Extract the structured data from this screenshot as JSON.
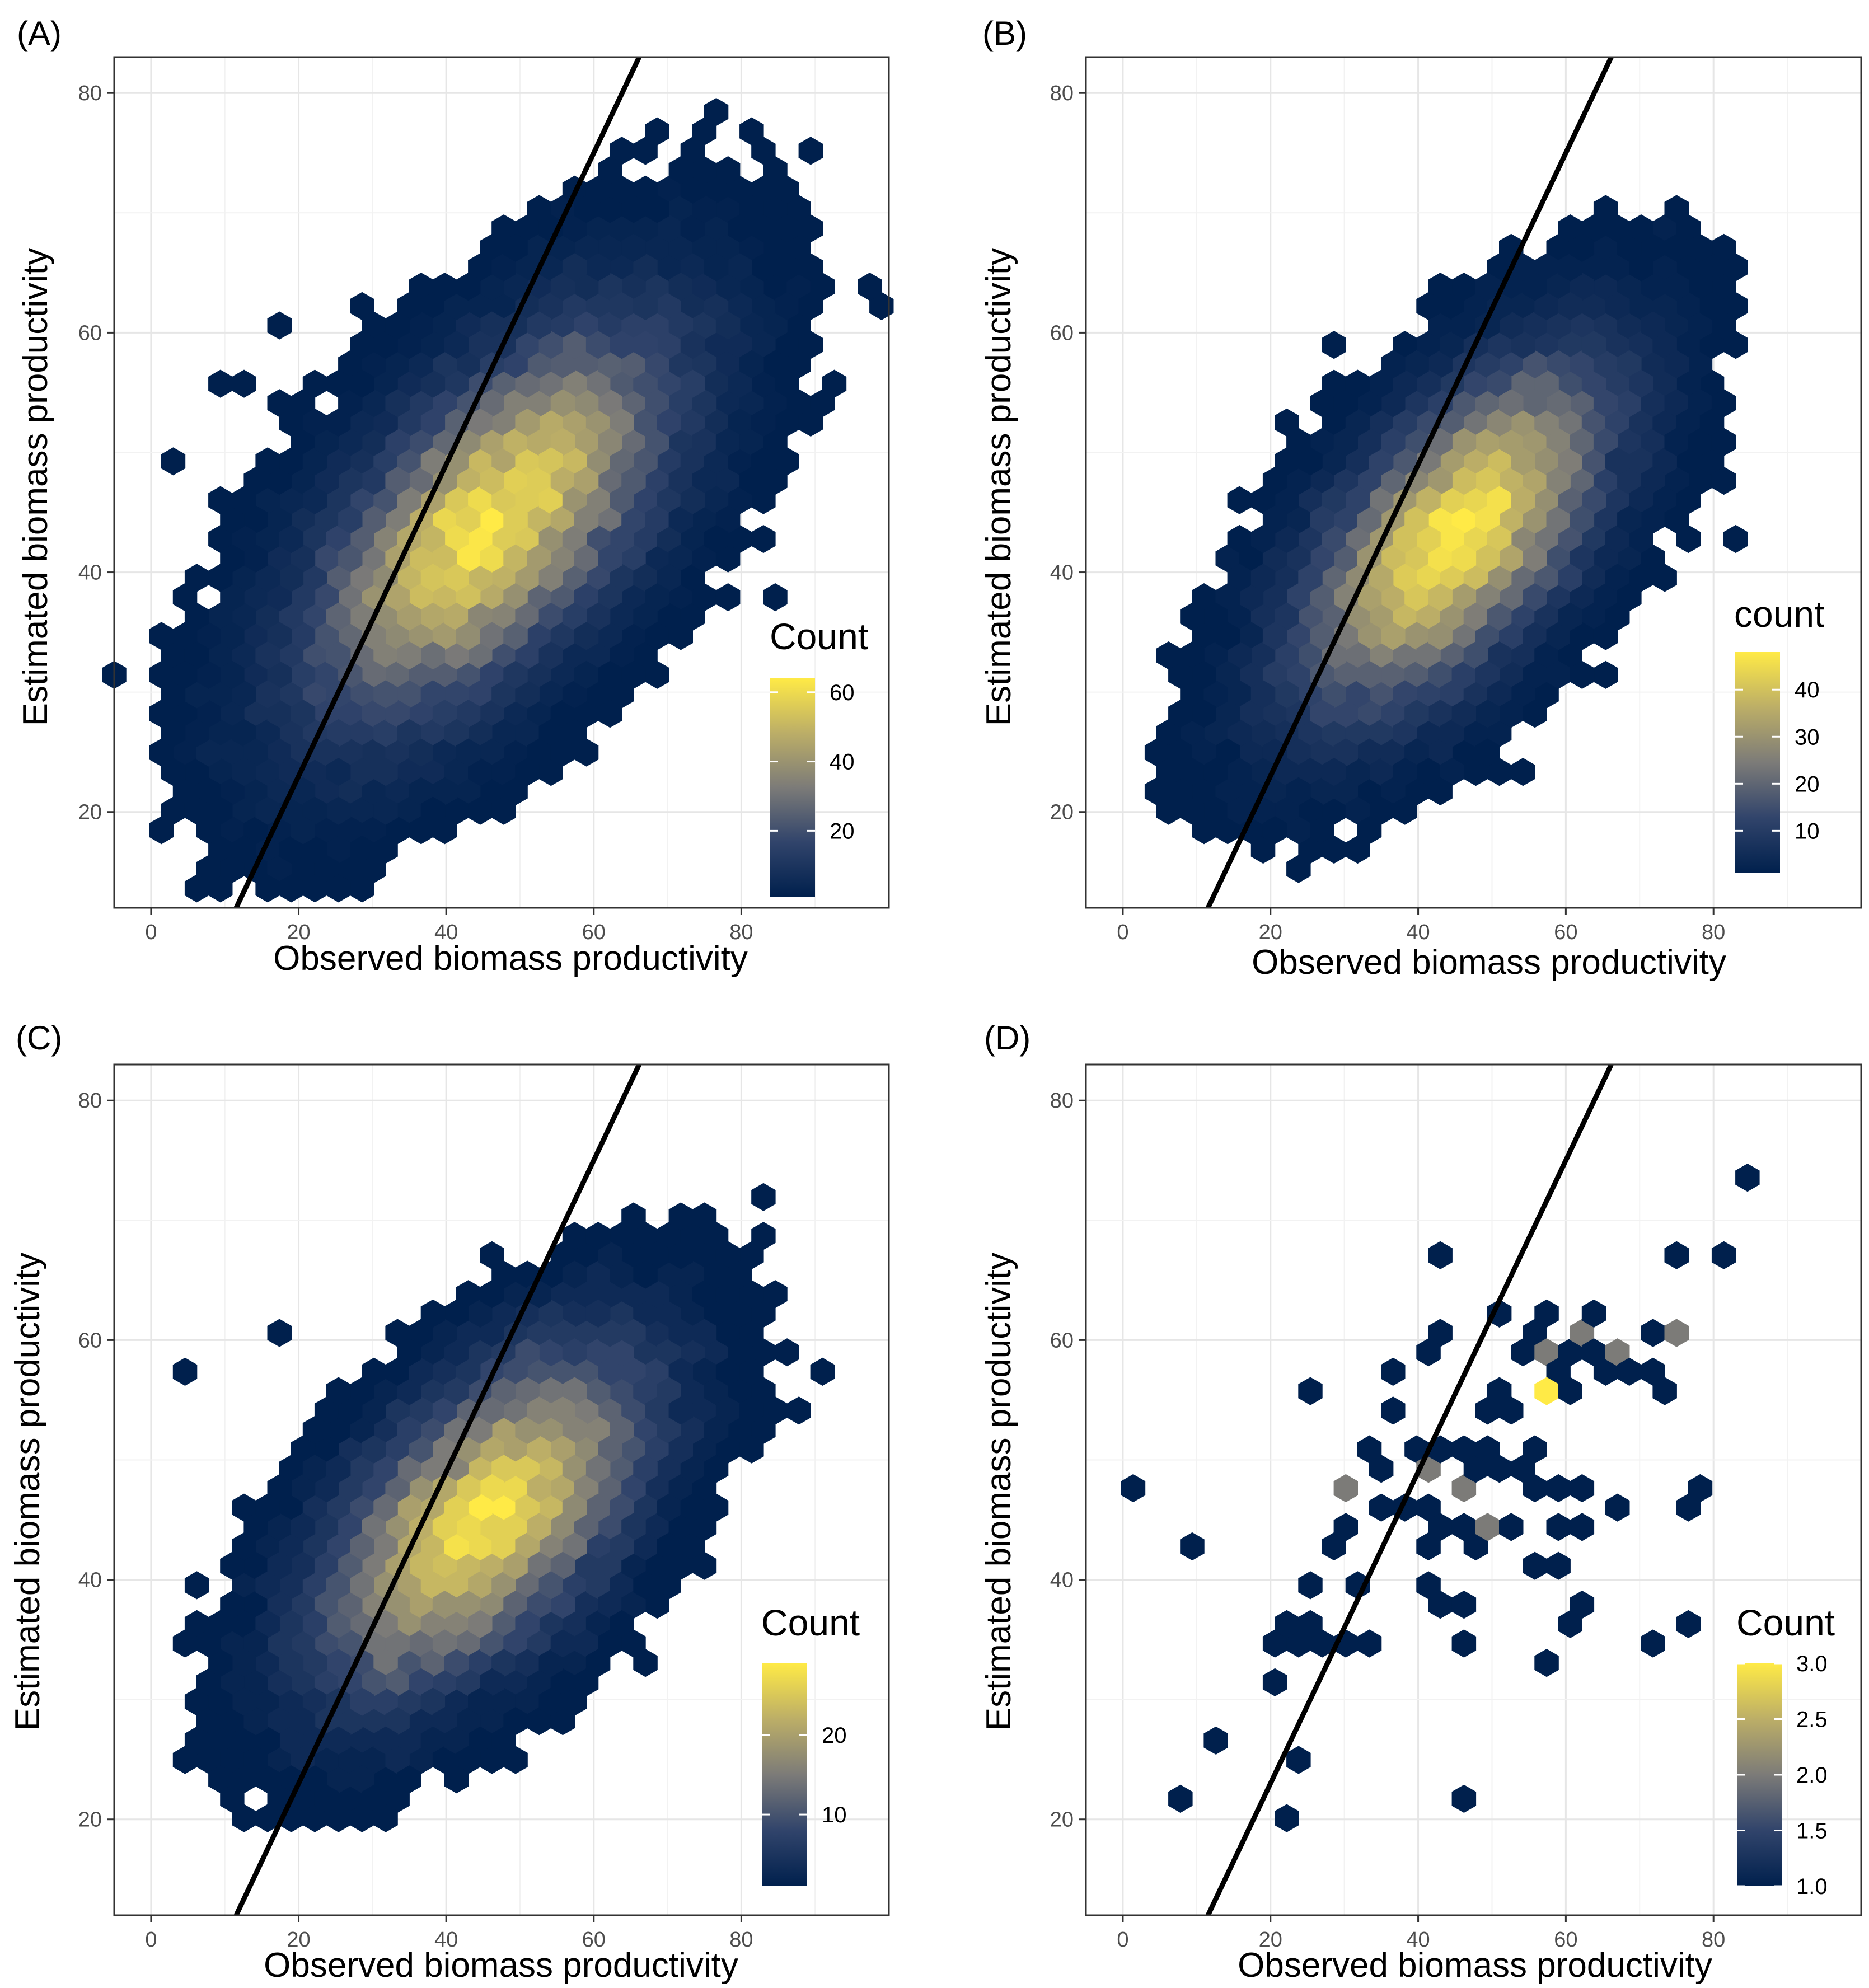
{
  "chart_data": [
    {
      "panel_label": "(A)",
      "type": "hexbin",
      "xlabel": "Observed biomass productivity",
      "ylabel": "Estimated biomass productivity",
      "xlim": [
        -5,
        100
      ],
      "ylim": [
        12,
        83
      ],
      "x_ticks": [
        0,
        20,
        40,
        60,
        80
      ],
      "y_ticks": [
        20,
        40,
        60,
        80
      ],
      "grid": true,
      "reference_line": {
        "slope": 1.3,
        "intercept": -3
      },
      "legend": {
        "title": "Count",
        "ticks": [
          20,
          40,
          60
        ],
        "min": 1,
        "max": 64,
        "placement": "right"
      },
      "center": [
        46,
        44
      ],
      "spread": [
        15,
        10
      ],
      "rho": 0.62,
      "peak": 64,
      "outliers": [
        [
          1.5,
          49.5
        ],
        [
          8,
          56.5
        ],
        [
          13,
          55
        ],
        [
          18,
          60.5
        ],
        [
          18,
          49.5
        ],
        [
          7,
          32.5
        ],
        [
          10,
          32.5
        ],
        [
          8,
          21
        ],
        [
          9,
          19.5
        ],
        [
          11,
          19.5
        ],
        [
          14,
          19.5
        ],
        [
          20,
          20
        ],
        [
          24,
          19.5
        ],
        [
          30,
          62.5
        ],
        [
          37,
          22
        ],
        [
          48,
          20.5
        ],
        [
          52,
          23
        ],
        [
          82,
          72
        ],
        [
          86,
          74
        ],
        [
          94,
          56.5
        ],
        [
          87,
          55
        ],
        [
          89,
          53
        ],
        [
          76,
          47.5
        ],
        [
          83,
          43.5
        ],
        [
          78,
          38
        ],
        [
          84,
          38
        ],
        [
          66,
          35.5
        ],
        [
          70,
          35.5
        ],
        [
          73,
          35.5
        ],
        [
          85,
          62.5
        ],
        [
          47,
          66
        ]
      ]
    },
    {
      "panel_label": "(B)",
      "type": "hexbin",
      "xlabel": "Observed biomass productivity",
      "ylabel": "Estimated biomass productivity",
      "xlim": [
        -5,
        100
      ],
      "ylim": [
        12,
        83
      ],
      "x_ticks": [
        0,
        20,
        40,
        60,
        80
      ],
      "y_ticks": [
        20,
        40,
        60,
        80
      ],
      "grid": true,
      "reference_line": {
        "slope": 1.3,
        "intercept": -3
      },
      "legend": {
        "title": "count",
        "ticks": [
          10,
          20,
          30,
          40
        ],
        "min": 1,
        "max": 48,
        "placement": "right"
      },
      "center": [
        45,
        43
      ],
      "spread": [
        13,
        9
      ],
      "rho": 0.62,
      "peak": 48,
      "outliers": [
        [
          6,
          32.5
        ],
        [
          10,
          32.5
        ],
        [
          6,
          21
        ],
        [
          7,
          19.5
        ],
        [
          9,
          19.5
        ],
        [
          12,
          19.5
        ],
        [
          24,
          19.5
        ],
        [
          28,
          58.5
        ],
        [
          22,
          53
        ],
        [
          81,
          60.5
        ],
        [
          82,
          43.5
        ],
        [
          76,
          43.5
        ],
        [
          78,
          47
        ],
        [
          50,
          23
        ],
        [
          53,
          23
        ],
        [
          65,
          34.5
        ],
        [
          66,
          66
        ]
      ]
    },
    {
      "panel_label": "(C)",
      "type": "hexbin",
      "xlabel": "Observed biomass productivity",
      "ylabel": "Estimated biomass productivity",
      "xlim": [
        -5,
        100
      ],
      "ylim": [
        12,
        83
      ],
      "x_ticks": [
        0,
        20,
        40,
        60,
        80
      ],
      "y_ticks": [
        20,
        40,
        60,
        80
      ],
      "grid": true,
      "reference_line": {
        "slope": 1.3,
        "intercept": -3
      },
      "legend": {
        "title": "Count",
        "ticks": [
          10,
          20
        ],
        "min": 1,
        "max": 29,
        "placement": "right"
      },
      "center": [
        45,
        45
      ],
      "spread": [
        14,
        9
      ],
      "rho": 0.58,
      "peak": 29,
      "outliers": [
        [
          6,
          57
        ],
        [
          16,
          61
        ],
        [
          92,
          57
        ],
        [
          89,
          53.5
        ],
        [
          83,
          72
        ],
        [
          71,
          70
        ],
        [
          12,
          32.5
        ],
        [
          19,
          19.5
        ],
        [
          49,
          25
        ],
        [
          68,
          32.5
        ],
        [
          58,
          33
        ],
        [
          52,
          33
        ],
        [
          15,
          23
        ],
        [
          17,
          25
        ]
      ]
    },
    {
      "panel_label": "(D)",
      "type": "hexbin",
      "xlabel": "Observed biomass productivity",
      "ylabel": "Estimated biomass productivity",
      "xlim": [
        -5,
        100
      ],
      "ylim": [
        12,
        83
      ],
      "x_ticks": [
        0,
        20,
        40,
        60,
        80
      ],
      "y_ticks": [
        20,
        40,
        60,
        80
      ],
      "grid": true,
      "reference_line": {
        "slope": 1.3,
        "intercept": -3
      },
      "legend": {
        "title": "Count",
        "ticks": [
          "1.0",
          "1.5",
          "2.0",
          "2.5",
          "3.0"
        ],
        "min": 1,
        "max": 3,
        "placement": "right"
      },
      "points": [
        [
          1.5,
          47.5,
          1
        ],
        [
          9,
          42,
          1
        ],
        [
          8,
          21.5,
          1
        ],
        [
          13,
          27,
          1
        ],
        [
          22,
          19.5,
          1
        ],
        [
          24,
          25,
          1
        ],
        [
          22,
          31,
          1
        ],
        [
          22,
          34.5,
          1
        ],
        [
          24,
          34.5,
          1
        ],
        [
          26,
          34.5,
          1
        ],
        [
          28,
          34.5,
          1
        ],
        [
          30,
          34.5,
          1
        ],
        [
          32,
          34.5,
          1
        ],
        [
          22,
          37,
          1
        ],
        [
          24,
          36,
          1
        ],
        [
          26,
          40,
          1
        ],
        [
          28,
          42,
          1
        ],
        [
          30,
          44,
          1
        ],
        [
          33,
          40,
          1
        ],
        [
          24,
          55,
          1
        ],
        [
          43,
          66.5,
          1
        ],
        [
          50,
          62.5,
          1
        ],
        [
          29,
          47.5,
          2
        ],
        [
          33,
          51.5,
          1
        ],
        [
          35,
          49.5,
          1
        ],
        [
          35,
          46,
          1
        ],
        [
          38,
          46,
          1
        ],
        [
          40,
          46,
          1
        ],
        [
          41,
          43.5,
          1
        ],
        [
          43,
          44,
          1
        ],
        [
          45,
          44.5,
          1
        ],
        [
          47,
          43.5,
          1
        ],
        [
          48,
          44,
          2
        ],
        [
          51,
          44,
          1
        ],
        [
          43,
          40,
          1
        ],
        [
          42,
          38.5,
          1
        ],
        [
          47,
          38,
          1
        ],
        [
          47,
          34.5,
          1
        ],
        [
          46,
          21.5,
          1
        ],
        [
          38,
          53.5,
          1
        ],
        [
          40,
          51.5,
          1
        ],
        [
          41,
          49.5,
          2
        ],
        [
          43,
          51.5,
          1
        ],
        [
          45,
          47.5,
          2
        ],
        [
          45,
          51.5,
          1
        ],
        [
          47,
          49.5,
          1
        ],
        [
          48,
          53.5,
          1
        ],
        [
          50,
          51.5,
          1
        ],
        [
          51,
          49.5,
          1
        ],
        [
          53,
          49.5,
          1
        ],
        [
          55,
          49.5,
          1
        ],
        [
          52,
          55.5,
          1
        ],
        [
          54,
          53.5,
          1
        ],
        [
          56,
          51.5,
          1
        ],
        [
          55,
          47.5,
          2
        ],
        [
          57,
          47.5,
          1
        ],
        [
          60,
          47.5,
          1
        ],
        [
          62,
          47.5,
          1
        ],
        [
          58,
          44,
          1
        ],
        [
          61,
          44,
          1
        ],
        [
          56,
          40.5,
          1
        ],
        [
          59,
          40.5,
          1
        ],
        [
          62,
          38.5,
          1
        ],
        [
          61,
          36.5,
          1
        ],
        [
          58,
          32.5,
          1
        ],
        [
          66,
          46,
          1
        ],
        [
          54,
          58.5,
          1
        ],
        [
          56,
          60.5,
          1
        ],
        [
          58,
          62.5,
          1
        ],
        [
          58,
          59,
          2
        ],
        [
          60,
          57.5,
          1
        ],
        [
          58,
          55.5,
          3
        ],
        [
          61,
          56.5,
          1
        ],
        [
          62,
          59,
          1
        ],
        [
          63,
          61,
          2
        ],
        [
          64,
          63,
          1
        ],
        [
          65,
          59,
          1
        ],
        [
          66,
          57,
          1
        ],
        [
          68,
          59,
          2
        ],
        [
          69,
          57,
          1
        ],
        [
          71,
          57,
          1
        ],
        [
          73,
          55,
          1
        ],
        [
          73,
          61,
          1
        ],
        [
          76,
          61,
          2
        ],
        [
          74,
          66.5,
          1
        ],
        [
          80,
          66.5,
          1
        ],
        [
          42,
          61,
          1
        ],
        [
          40,
          59,
          1
        ],
        [
          38,
          57,
          1
        ],
        [
          43,
          58.5,
          1
        ],
        [
          76,
          46,
          1
        ],
        [
          77,
          48,
          1
        ],
        [
          77,
          36.5,
          1
        ],
        [
          73,
          34.5,
          1
        ],
        [
          84,
          74,
          1
        ]
      ]
    }
  ]
}
